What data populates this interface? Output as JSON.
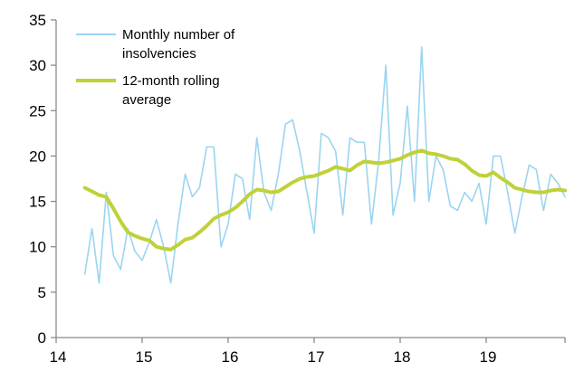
{
  "chart_data": {
    "type": "line",
    "title": "",
    "x_axis": {
      "tick_labels": [
        "14",
        "15",
        "16",
        "17",
        "18",
        "19"
      ],
      "frequency": "monthly",
      "start": "May 2014",
      "end": "Dec 2019"
    },
    "y_axis": {
      "ticks": [
        0,
        5,
        10,
        15,
        20,
        25,
        30,
        35
      ],
      "min": 0,
      "max": 35
    },
    "grid": false,
    "legend_position": "top-left",
    "axis_color": "#8a8a8a",
    "label_color": "#000000",
    "series": [
      {
        "name": "Monthly number of insolvencies",
        "color": "#9bd5f0",
        "stroke_width": 1.6,
        "values": [
          7,
          12,
          6,
          16,
          9,
          7.5,
          12,
          9.5,
          8.5,
          10.5,
          13,
          10,
          6,
          12.5,
          18,
          15.5,
          16.5,
          21,
          21,
          10,
          12.5,
          18,
          17.5,
          13,
          22,
          16,
          14,
          18,
          23.5,
          24,
          20.5,
          16,
          11.5,
          22.5,
          22,
          20.5,
          13.5,
          22,
          21.5,
          21.5,
          12.5,
          19.5,
          30,
          13.5,
          17,
          25.5,
          15,
          32,
          15,
          20,
          18.5,
          14.5,
          14,
          16,
          15,
          17,
          12.5,
          20,
          20,
          16,
          11.5,
          15.5,
          19,
          18.5,
          14,
          18,
          17,
          15.5
        ]
      },
      {
        "name": "12-month rolling average",
        "color": "#c0d139",
        "stroke_width": 4,
        "values": [
          16.5,
          16.1,
          15.7,
          15.5,
          14.2,
          12.8,
          11.6,
          11.2,
          10.9,
          10.7,
          10,
          9.8,
          9.7,
          10.2,
          10.8,
          11,
          11.6,
          12.3,
          13.1,
          13.5,
          13.8,
          14.3,
          15,
          15.8,
          16.3,
          16.2,
          16,
          16.1,
          16.6,
          17.1,
          17.5,
          17.7,
          17.8,
          18.1,
          18.4,
          18.8,
          18.6,
          18.4,
          19,
          19.4,
          19.3,
          19.2,
          19.3,
          19.5,
          19.7,
          20.1,
          20.4,
          20.6,
          20.3,
          20.2,
          20,
          19.7,
          19.6,
          19.1,
          18.4,
          17.9,
          17.8,
          18.2,
          17.6,
          17.1,
          16.5,
          16.3,
          16.1,
          16,
          16,
          16.2,
          16.3,
          16.2
        ]
      }
    ]
  }
}
